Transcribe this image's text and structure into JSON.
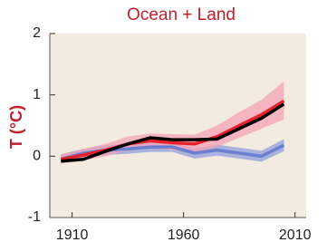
{
  "chart_data": {
    "type": "line",
    "title": "Ocean + Land",
    "y_label": "T (°C)",
    "x": [
      1905,
      1915,
      1925,
      1935,
      1945,
      1955,
      1965,
      1975,
      1985,
      1995,
      2005
    ],
    "xlim": [
      1900,
      2015
    ],
    "xticks": [
      1910,
      1960,
      2010
    ],
    "ylim": [
      -1,
      2
    ],
    "yticks": [
      -1,
      0,
      1,
      2
    ],
    "background": "#f3ebe0",
    "series": [
      {
        "color": "#6a7fd0",
        "band_color": "#8f9fdc",
        "values": [
          -0.05,
          0.05,
          0.1,
          0.12,
          0.15,
          0.15,
          0.05,
          0.1,
          0.05,
          0.0,
          0.18
        ],
        "lower": [
          -0.12,
          -0.03,
          0.02,
          0.04,
          0.07,
          0.07,
          -0.04,
          0.01,
          -0.04,
          -0.09,
          0.08
        ],
        "upper": [
          0.03,
          0.12,
          0.18,
          0.2,
          0.23,
          0.23,
          0.13,
          0.19,
          0.14,
          0.09,
          0.28
        ]
      },
      {
        "color": "#e8202c",
        "band_color": "#f4a3b5",
        "values": [
          -0.05,
          0.02,
          0.1,
          0.2,
          0.25,
          0.22,
          0.2,
          0.32,
          0.5,
          0.68,
          0.9
        ],
        "lower": [
          -0.12,
          -0.07,
          0.0,
          0.1,
          0.14,
          0.1,
          0.06,
          0.15,
          0.3,
          0.45,
          0.6
        ],
        "upper": [
          0.03,
          0.12,
          0.2,
          0.32,
          0.37,
          0.36,
          0.35,
          0.5,
          0.72,
          0.92,
          1.22
        ]
      },
      {
        "color": "#000000",
        "values": [
          -0.08,
          -0.05,
          0.08,
          0.2,
          0.3,
          0.27,
          0.27,
          0.28,
          0.45,
          0.62,
          0.85
        ]
      }
    ]
  }
}
